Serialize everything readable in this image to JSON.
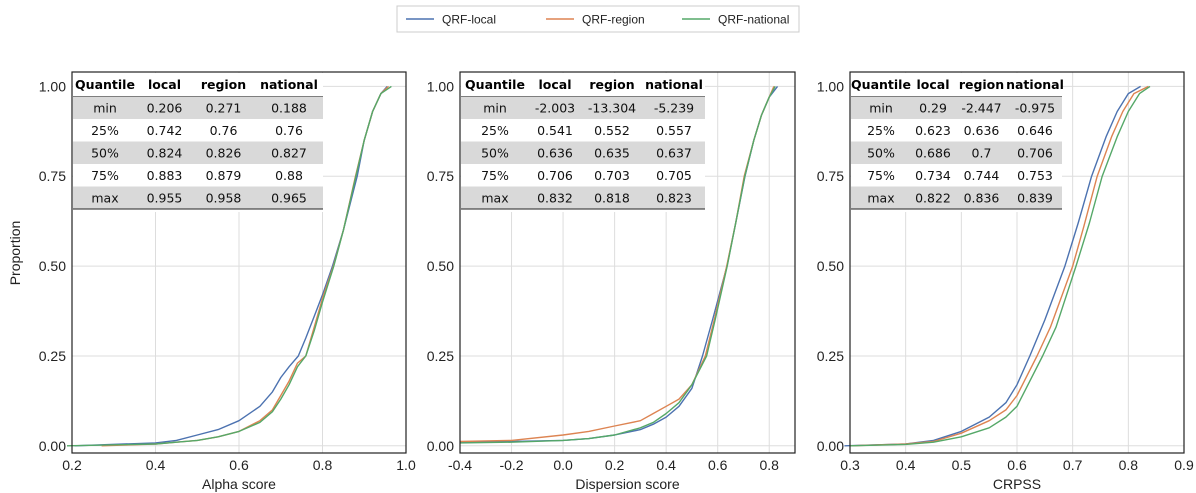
{
  "legend": {
    "items": [
      {
        "label": "QRF-local",
        "color": "#4c72b0"
      },
      {
        "label": "QRF-region",
        "color": "#dd8452"
      },
      {
        "label": "QRF-national",
        "color": "#55a868"
      }
    ]
  },
  "ylabel": "Proportion",
  "chart_data": [
    {
      "type": "line",
      "xlabel": "Alpha score",
      "ylabel": "Proportion",
      "xlim": [
        0.2,
        1.0
      ],
      "ylim": [
        -0.02,
        1.04
      ],
      "xticks": [
        "0.2",
        "0.4",
        "0.6",
        "0.8",
        "1.0"
      ],
      "yticks": [
        "0.00",
        "0.25",
        "0.50",
        "0.75",
        "1.00"
      ],
      "grid": true,
      "series": [
        {
          "name": "QRF-local",
          "color": "#4c72b0",
          "x": [
            0.206,
            0.4,
            0.45,
            0.5,
            0.55,
            0.6,
            0.65,
            0.68,
            0.7,
            0.72,
            0.742,
            0.76,
            0.78,
            0.8,
            0.824,
            0.85,
            0.883,
            0.9,
            0.92,
            0.94,
            0.955
          ],
          "y": [
            0.0,
            0.008,
            0.015,
            0.03,
            0.045,
            0.07,
            0.11,
            0.15,
            0.19,
            0.22,
            0.25,
            0.3,
            0.36,
            0.42,
            0.5,
            0.6,
            0.75,
            0.85,
            0.93,
            0.98,
            1.0
          ]
        },
        {
          "name": "QRF-region",
          "color": "#dd8452",
          "x": [
            0.271,
            0.4,
            0.45,
            0.5,
            0.55,
            0.6,
            0.65,
            0.68,
            0.7,
            0.72,
            0.74,
            0.76,
            0.78,
            0.8,
            0.826,
            0.85,
            0.879,
            0.9,
            0.92,
            0.94,
            0.958
          ],
          "y": [
            0.0,
            0.005,
            0.01,
            0.015,
            0.025,
            0.04,
            0.07,
            0.1,
            0.14,
            0.18,
            0.23,
            0.25,
            0.33,
            0.41,
            0.5,
            0.6,
            0.75,
            0.85,
            0.93,
            0.98,
            1.0
          ]
        },
        {
          "name": "QRF-national",
          "color": "#55a868",
          "x": [
            0.188,
            0.4,
            0.45,
            0.5,
            0.55,
            0.6,
            0.65,
            0.68,
            0.7,
            0.72,
            0.74,
            0.76,
            0.78,
            0.8,
            0.827,
            0.85,
            0.88,
            0.9,
            0.92,
            0.94,
            0.965
          ],
          "y": [
            0.0,
            0.005,
            0.01,
            0.015,
            0.025,
            0.04,
            0.065,
            0.095,
            0.13,
            0.17,
            0.22,
            0.25,
            0.32,
            0.4,
            0.5,
            0.6,
            0.75,
            0.85,
            0.93,
            0.98,
            1.0
          ]
        }
      ],
      "table": {
        "headers": [
          "Quantile",
          "local",
          "region",
          "national"
        ],
        "rows": [
          [
            "min",
            "0.206",
            "0.271",
            "0.188"
          ],
          [
            "25%",
            "0.742",
            "0.76",
            "0.76"
          ],
          [
            "50%",
            "0.824",
            "0.826",
            "0.827"
          ],
          [
            "75%",
            "0.883",
            "0.879",
            "0.88"
          ],
          [
            "max",
            "0.955",
            "0.958",
            "0.965"
          ]
        ]
      }
    },
    {
      "type": "line",
      "xlabel": "Dispersion score",
      "ylabel": "",
      "xlim": [
        -0.4,
        0.9
      ],
      "ylim": [
        -0.02,
        1.04
      ],
      "xticks": [
        "-0.4",
        "-0.2",
        "0.0",
        "0.2",
        "0.4",
        "0.6",
        "0.8"
      ],
      "yticks": [
        "0.00",
        "0.25",
        "0.50",
        "0.75",
        "1.00"
      ],
      "grid": true,
      "series": [
        {
          "name": "QRF-local",
          "color": "#4c72b0",
          "x": [
            -0.4,
            -0.2,
            0.0,
            0.1,
            0.2,
            0.3,
            0.35,
            0.4,
            0.45,
            0.5,
            0.541,
            0.58,
            0.636,
            0.67,
            0.706,
            0.74,
            0.77,
            0.8,
            0.832
          ],
          "y": [
            0.01,
            0.012,
            0.015,
            0.02,
            0.03,
            0.045,
            0.06,
            0.08,
            0.11,
            0.16,
            0.25,
            0.35,
            0.5,
            0.62,
            0.75,
            0.85,
            0.92,
            0.97,
            1.0
          ]
        },
        {
          "name": "QRF-region",
          "color": "#dd8452",
          "x": [
            -0.4,
            -0.2,
            0.0,
            0.1,
            0.2,
            0.3,
            0.35,
            0.4,
            0.45,
            0.5,
            0.552,
            0.59,
            0.635,
            0.67,
            0.703,
            0.74,
            0.77,
            0.8,
            0.818
          ],
          "y": [
            0.012,
            0.015,
            0.03,
            0.04,
            0.055,
            0.07,
            0.09,
            0.11,
            0.13,
            0.17,
            0.25,
            0.36,
            0.5,
            0.62,
            0.75,
            0.85,
            0.92,
            0.97,
            1.0
          ]
        },
        {
          "name": "QRF-national",
          "color": "#55a868",
          "x": [
            -0.4,
            -0.2,
            0.0,
            0.1,
            0.2,
            0.3,
            0.35,
            0.4,
            0.45,
            0.5,
            0.557,
            0.59,
            0.637,
            0.67,
            0.705,
            0.74,
            0.77,
            0.8,
            0.823
          ],
          "y": [
            0.008,
            0.01,
            0.015,
            0.02,
            0.03,
            0.05,
            0.065,
            0.09,
            0.12,
            0.17,
            0.25,
            0.35,
            0.5,
            0.62,
            0.75,
            0.85,
            0.92,
            0.97,
            1.0
          ]
        }
      ],
      "table": {
        "headers": [
          "Quantile",
          "local",
          "region",
          "national"
        ],
        "rows": [
          [
            "min",
            "-2.003",
            "-13.304",
            "-5.239"
          ],
          [
            "25%",
            "0.541",
            "0.552",
            "0.557"
          ],
          [
            "50%",
            "0.636",
            "0.635",
            "0.637"
          ],
          [
            "75%",
            "0.706",
            "0.703",
            "0.705"
          ],
          [
            "max",
            "0.832",
            "0.818",
            "0.823"
          ]
        ]
      }
    },
    {
      "type": "line",
      "xlabel": "CRPSS",
      "ylabel": "",
      "xlim": [
        0.3,
        0.9
      ],
      "ylim": [
        -0.02,
        1.04
      ],
      "xticks": [
        "0.3",
        "0.4",
        "0.5",
        "0.6",
        "0.7",
        "0.8",
        "0.9"
      ],
      "yticks": [
        "0.00",
        "0.25",
        "0.50",
        "0.75",
        "1.00"
      ],
      "grid": true,
      "series": [
        {
          "name": "QRF-local",
          "color": "#4c72b0",
          "x": [
            0.29,
            0.4,
            0.45,
            0.5,
            0.55,
            0.58,
            0.6,
            0.623,
            0.65,
            0.686,
            0.71,
            0.734,
            0.76,
            0.78,
            0.8,
            0.822
          ],
          "y": [
            0.0,
            0.005,
            0.015,
            0.04,
            0.08,
            0.12,
            0.17,
            0.25,
            0.35,
            0.5,
            0.62,
            0.75,
            0.86,
            0.93,
            0.98,
            1.0
          ]
        },
        {
          "name": "QRF-region",
          "color": "#dd8452",
          "x": [
            0.3,
            0.4,
            0.45,
            0.5,
            0.55,
            0.58,
            0.6,
            0.636,
            0.66,
            0.7,
            0.72,
            0.744,
            0.77,
            0.79,
            0.81,
            0.836
          ],
          "y": [
            0.0,
            0.005,
            0.012,
            0.035,
            0.07,
            0.1,
            0.14,
            0.25,
            0.33,
            0.5,
            0.61,
            0.75,
            0.86,
            0.93,
            0.98,
            1.0
          ]
        },
        {
          "name": "QRF-national",
          "color": "#55a868",
          "x": [
            0.3,
            0.4,
            0.45,
            0.5,
            0.55,
            0.58,
            0.6,
            0.646,
            0.67,
            0.706,
            0.73,
            0.753,
            0.78,
            0.8,
            0.82,
            0.839
          ],
          "y": [
            0.0,
            0.004,
            0.01,
            0.025,
            0.05,
            0.08,
            0.11,
            0.25,
            0.33,
            0.5,
            0.62,
            0.75,
            0.86,
            0.93,
            0.98,
            1.0
          ]
        }
      ],
      "table": {
        "headers": [
          "Quantile",
          "local",
          "region",
          "national"
        ],
        "rows": [
          [
            "min",
            "0.29",
            "-2.447",
            "-0.975"
          ],
          [
            "25%",
            "0.623",
            "0.636",
            "0.646"
          ],
          [
            "50%",
            "0.686",
            "0.7",
            "0.706"
          ],
          [
            "75%",
            "0.734",
            "0.744",
            "0.753"
          ],
          [
            "max",
            "0.822",
            "0.836",
            "0.839"
          ]
        ]
      }
    }
  ]
}
